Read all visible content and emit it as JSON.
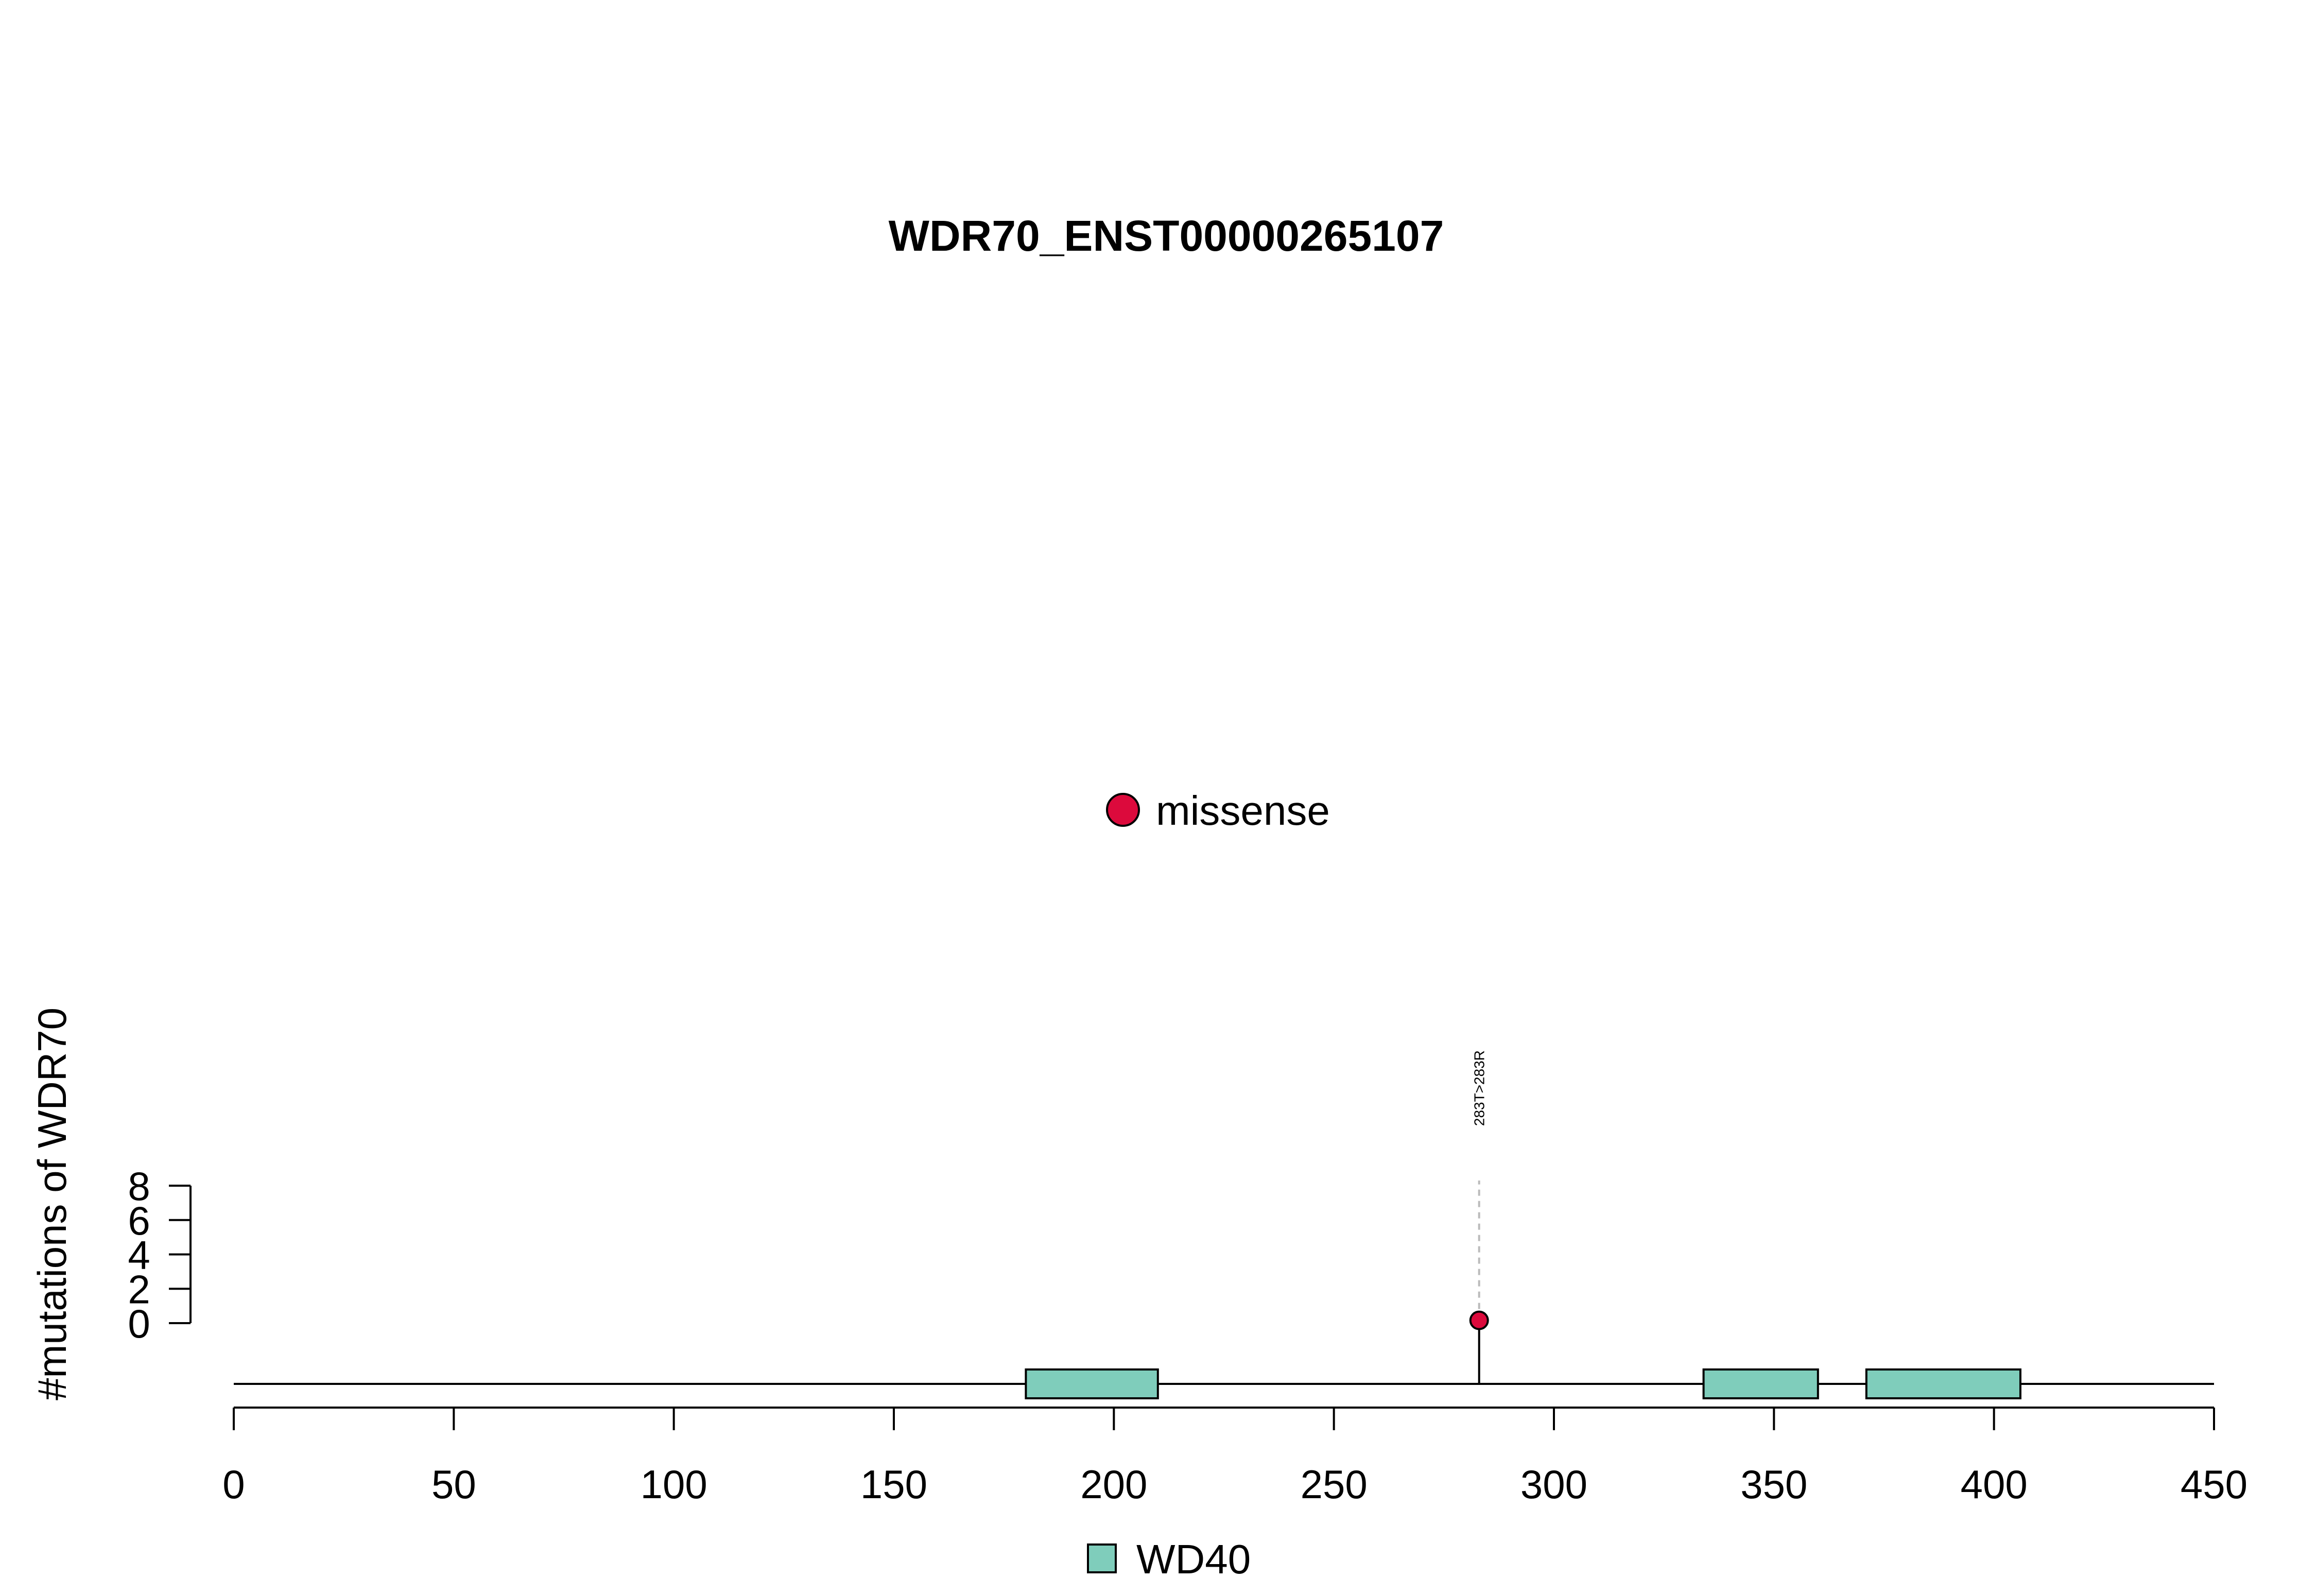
{
  "chart_data": {
    "type": "lollipop",
    "title": "WDR70_ENST00000265107",
    "ylabel": "#mutations of WDR70",
    "xlim": [
      0,
      450
    ],
    "x_ticks": [
      "0",
      "50",
      "100",
      "150",
      "200",
      "250",
      "300",
      "350",
      "400",
      "450"
    ],
    "ylim": [
      0,
      8
    ],
    "y_ticks": [
      "0",
      "2",
      "4",
      "6",
      "8"
    ],
    "domains": [
      {
        "name": "WD40",
        "start": 180,
        "end": 210
      },
      {
        "name": "WD40",
        "start": 334,
        "end": 360
      },
      {
        "name": "WD40",
        "start": 371,
        "end": 406
      }
    ],
    "mutations": [
      {
        "position": 283,
        "count": 1,
        "type": "missense",
        "label": "283T>283R"
      }
    ],
    "point_legend": [
      {
        "name": "missense",
        "color": "#dc0a3c"
      }
    ],
    "domain_legend": [
      {
        "name": "WD40",
        "color": "#7fcdbb"
      }
    ],
    "colors": {
      "missense": "#dc0a3c",
      "domain": "#7fcdbb"
    }
  }
}
